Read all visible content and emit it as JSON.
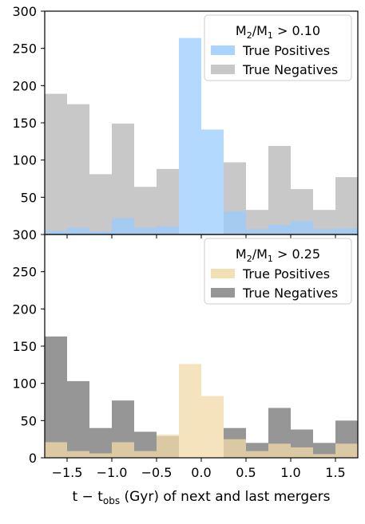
{
  "chart_data": [
    {
      "type": "bar",
      "panel": "top",
      "legend_title_base": "M",
      "legend_title_sub1": "2",
      "legend_title_mid": "/M",
      "legend_title_sub2": "1",
      "legend_title_tail": " > 0.10",
      "legend_position": "top-right",
      "ylim": [
        0,
        300
      ],
      "xlim": [
        -1.75,
        1.75
      ],
      "yticks": [
        50,
        100,
        150,
        200,
        250,
        300
      ],
      "bin_edges": [
        -1.75,
        -1.5,
        -1.25,
        -1.0,
        -0.75,
        -0.5,
        -0.25,
        0.0,
        0.25,
        0.5,
        0.75,
        1.0,
        1.25,
        1.5,
        1.75
      ],
      "series": [
        {
          "name": "True Positives",
          "color": "#99ccff",
          "values": [
            5,
            9,
            4,
            22,
            9,
            11,
            264,
            141,
            31,
            7,
            13,
            18,
            7,
            8
          ]
        },
        {
          "name": "True Negatives",
          "color": "#c8c8c8",
          "values": [
            189,
            175,
            81,
            149,
            64,
            88,
            0,
            0,
            97,
            33,
            119,
            61,
            33,
            77
          ]
        }
      ],
      "edge_partial_left": 82
    },
    {
      "type": "bar",
      "panel": "bottom",
      "legend_title_base": "M",
      "legend_title_sub1": "2",
      "legend_title_mid": "/M",
      "legend_title_sub2": "1",
      "legend_title_tail": " > 0.25",
      "legend_position": "top-right",
      "ylim": [
        0,
        300
      ],
      "xlim": [
        -1.75,
        1.75
      ],
      "yticks": [
        0,
        50,
        100,
        150,
        200,
        250,
        300
      ],
      "xticks": [
        -1.5,
        -1.0,
        -0.5,
        0.0,
        0.5,
        1.0,
        1.5
      ],
      "xtick_labels": [
        "−1.5",
        "−1.0",
        "−0.5",
        "0.0",
        "0.5",
        "1.0",
        "1.5"
      ],
      "xlabel_pre": "t − t",
      "xlabel_sub": "obs",
      "xlabel_post": " (Gyr) of next and last mergers",
      "bin_edges": [
        -1.75,
        -1.5,
        -1.25,
        -1.0,
        -0.75,
        -0.5,
        -0.25,
        0.0,
        0.25,
        0.5,
        0.75,
        1.0,
        1.25,
        1.5,
        1.75
      ],
      "series": [
        {
          "name": "True Positives",
          "color": "#f0d9a6",
          "values": [
            21,
            9,
            6,
            21,
            9,
            31,
            126,
            83,
            25,
            9,
            19,
            14,
            5,
            19
          ]
        },
        {
          "name": "True Negatives",
          "color": "#969696",
          "values": [
            163,
            103,
            40,
            77,
            35,
            29,
            0,
            0,
            40,
            20,
            67,
            38,
            20,
            50
          ]
        }
      ],
      "edge_partial_left": 70
    }
  ]
}
